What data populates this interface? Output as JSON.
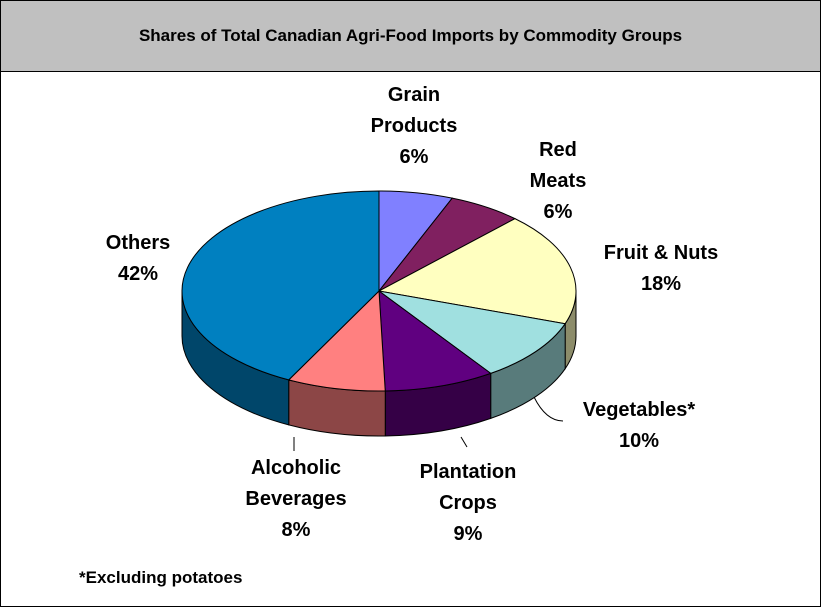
{
  "chart_data": {
    "type": "pie3d",
    "title": "Shares of Total Canadian Agri-Food Imports by Commodity Groups",
    "categories": [
      "Grain Products",
      "Red Meats",
      "Fruit & Nuts",
      "Vegetables*",
      "Plantation Crops",
      "Alcoholic Beverages",
      "Others"
    ],
    "values": [
      6,
      6,
      18,
      10,
      9,
      8,
      42
    ],
    "value_labels": [
      "6%",
      "6%",
      "18%",
      "10%",
      "9%",
      "8%",
      "42%"
    ],
    "colors": [
      "#8080ff",
      "#802060",
      "#ffffc0",
      "#a0e0e0",
      "#600080",
      "#ff8080",
      "#0080c0"
    ],
    "note": "*Excluding potatoes"
  }
}
